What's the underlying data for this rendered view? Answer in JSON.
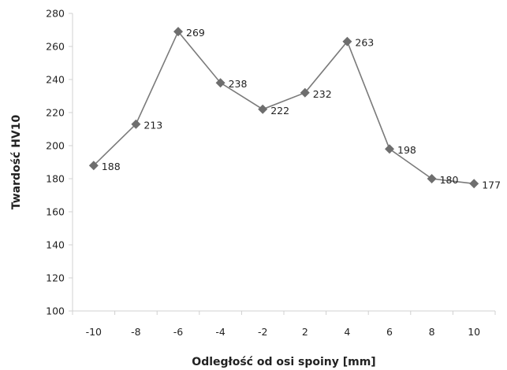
{
  "chart_data": {
    "type": "line",
    "title": "",
    "xlabel": "Odległość od osi spoiny [mm]",
    "ylabel": "Twardość HV10",
    "categories": [
      "-10",
      "-8",
      "-6",
      "-4",
      "-2",
      "2",
      "4",
      "6",
      "8",
      "10"
    ],
    "series": [
      {
        "values": [
          188,
          213,
          269,
          238,
          222,
          232,
          263,
          198,
          180,
          177
        ],
        "data_labels": [
          "188",
          "213",
          "269",
          "238",
          "222",
          "232",
          "263",
          "198",
          "180",
          "177"
        ]
      }
    ],
    "ylim": [
      100,
      280
    ],
    "yticks": [
      "100",
      "120",
      "140",
      "160",
      "180",
      "200",
      "220",
      "240",
      "260",
      "280"
    ],
    "grid": false,
    "legend": "none",
    "colors": {
      "line": "#7a7a7a",
      "marker": "#6e6e6e",
      "axis": "#d0d0d0"
    }
  }
}
